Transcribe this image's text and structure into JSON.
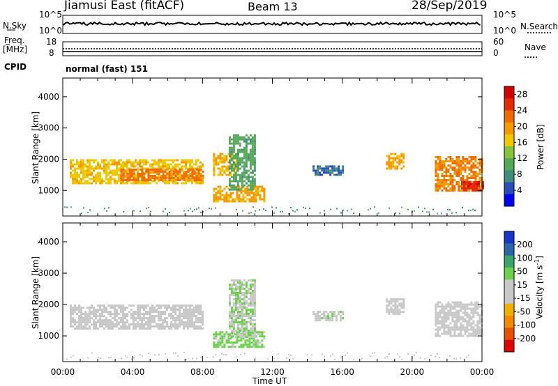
{
  "header": {
    "station": "Jiamusi East (fitACF)",
    "beam": "Beam 13",
    "date": "28/Sep/2019"
  },
  "top_panels": {
    "nsky": {
      "label": "N.Sky",
      "ticks": [
        "10^5",
        "10^0"
      ],
      "right_label": "N.Search",
      "right_ticks": [
        "10^5",
        "10^0"
      ]
    },
    "freq": {
      "label_line1": "Freq.",
      "label_line2": "[MHz]",
      "ticks": [
        "18",
        "8"
      ],
      "right_label": "Nave",
      "right_ticks": [
        "60",
        "0"
      ]
    },
    "cpid": {
      "label": "CPID",
      "value": "normal (fast) 151"
    }
  },
  "colors": {
    "power_scale": [
      "#0000ee",
      "#2a4cb8",
      "#3f8c7e",
      "#55a85a",
      "#86c43f",
      "#f0c800",
      "#f39a00",
      "#ef6a00",
      "#e42a00",
      "#d40000"
    ],
    "velocity_scale": [
      "#1a33c8",
      "#2a66a8",
      "#3aa46a",
      "#6cd04a",
      "#c8c8c8",
      "#c8c8c8",
      "#f0b000",
      "#f08a00",
      "#e85000",
      "#e00000"
    ]
  },
  "chart_data": [
    {
      "type": "heatmap",
      "name": "power",
      "ylabel": "Slant Range [km]",
      "y_ticks": [
        "1000",
        "2000",
        "3000",
        "4000"
      ],
      "ylim": [
        180,
        4600
      ],
      "xlim": [
        "00:00",
        "24:00"
      ],
      "colorbar": {
        "label": "Power [dB]",
        "ticks": [
          "4",
          "8",
          "12",
          "16",
          "20",
          "24",
          "28"
        ],
        "range": [
          0,
          30
        ]
      },
      "echo_regions": [
        {
          "t0": 0.4,
          "t1": 8.0,
          "r0": 1250,
          "r1": 2000,
          "value": 17
        },
        {
          "t0": 3.3,
          "t1": 8.0,
          "r0": 1350,
          "r1": 1700,
          "value": 22
        },
        {
          "t0": 8.6,
          "t1": 11.5,
          "r0": 650,
          "r1": 1150,
          "value": 19
        },
        {
          "t0": 8.6,
          "t1": 10.0,
          "r0": 1500,
          "r1": 2200,
          "value": 18
        },
        {
          "t0": 9.5,
          "t1": 11.0,
          "r0": 1000,
          "r1": 2800,
          "value": 10
        },
        {
          "t0": 14.3,
          "t1": 16.0,
          "r0": 1500,
          "r1": 1800,
          "value": 6
        },
        {
          "t0": 18.5,
          "t1": 19.5,
          "r0": 1700,
          "r1": 2200,
          "value": 19
        },
        {
          "t0": 21.3,
          "t1": 24.0,
          "r0": 1000,
          "r1": 2100,
          "value": 21
        },
        {
          "t0": 22.8,
          "t1": 24.0,
          "r0": 1000,
          "r1": 1300,
          "value": 26
        }
      ]
    },
    {
      "type": "heatmap",
      "name": "velocity",
      "ylabel": "Slant Range [km]",
      "y_ticks": [
        "1000",
        "2000",
        "3000",
        "4000"
      ],
      "ylim": [
        180,
        4600
      ],
      "xlim": [
        "00:00",
        "24:00"
      ],
      "x_ticks": [
        "00:00",
        "04:00",
        "08:00",
        "12:00",
        "16:00",
        "20:00",
        "00:00"
      ],
      "xlabel": "Time UT",
      "colorbar": {
        "label": "Velocity [m s",
        "label_sup": "-1",
        "label_end": "]",
        "ticks": [
          "200",
          "100",
          "50",
          "15",
          "-15",
          "-50",
          "-100",
          "-200"
        ],
        "range": [
          -250,
          250
        ]
      },
      "echo_regions": [
        {
          "t0": 0.4,
          "t1": 8.0,
          "r0": 1250,
          "r1": 2000,
          "value": -5
        },
        {
          "t0": 8.6,
          "t1": 11.5,
          "r0": 650,
          "r1": 1150,
          "value": 70
        },
        {
          "t0": 9.5,
          "t1": 11.0,
          "r0": 1000,
          "r1": 2800,
          "value": 40
        },
        {
          "t0": 14.3,
          "t1": 16.0,
          "r0": 1500,
          "r1": 1800,
          "value": 30
        },
        {
          "t0": 18.5,
          "t1": 19.5,
          "r0": 1700,
          "r1": 2200,
          "value": -8
        },
        {
          "t0": 21.3,
          "t1": 24.0,
          "r0": 1000,
          "r1": 2100,
          "value": -10
        }
      ]
    }
  ]
}
